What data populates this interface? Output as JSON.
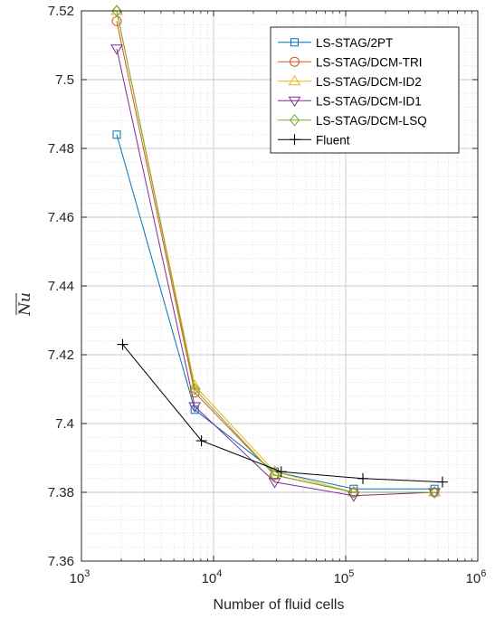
{
  "chart_data": {
    "type": "line",
    "xscale": "log",
    "xlabel": "Number of fluid cells",
    "ylabel": "Nu",
    "xlim": [
      1000,
      1000000
    ],
    "ylim": [
      7.36,
      7.52
    ],
    "xticks": [
      {
        "value": 1000,
        "base": "10",
        "exp": "3"
      },
      {
        "value": 10000,
        "base": "10",
        "exp": "4"
      },
      {
        "value": 100000,
        "base": "10",
        "exp": "5"
      },
      {
        "value": 1000000,
        "base": "10",
        "exp": "6"
      }
    ],
    "yticks": [
      {
        "value": 7.36,
        "label": "7.36"
      },
      {
        "value": 7.38,
        "label": "7.38"
      },
      {
        "value": 7.4,
        "label": "7.4"
      },
      {
        "value": 7.42,
        "label": "7.42"
      },
      {
        "value": 7.44,
        "label": "7.44"
      },
      {
        "value": 7.46,
        "label": "7.46"
      },
      {
        "value": 7.48,
        "label": "7.48"
      },
      {
        "value": 7.5,
        "label": "7.5"
      },
      {
        "value": 7.52,
        "label": "7.52"
      }
    ],
    "grid": true,
    "minor_grid": true,
    "legend_position": "top-right",
    "series": [
      {
        "name": "LS-STAG/2PT",
        "color": "#0072BD",
        "marker": "square",
        "x": [
          1850,
          7200,
          29000,
          115000,
          470000
        ],
        "y": [
          7.484,
          7.404,
          7.386,
          7.381,
          7.381
        ]
      },
      {
        "name": "LS-STAG/DCM-TRI",
        "color": "#D95319",
        "marker": "circle",
        "x": [
          1850,
          7200,
          29000,
          115000,
          470000
        ],
        "y": [
          7.517,
          7.409,
          7.385,
          7.38,
          7.38
        ]
      },
      {
        "name": "LS-STAG/DCM-ID2",
        "color": "#EDB120",
        "marker": "triangle-up",
        "x": [
          1850,
          7200,
          29000,
          115000,
          470000
        ],
        "y": [
          7.52,
          7.411,
          7.386,
          7.38,
          7.38
        ]
      },
      {
        "name": "LS-STAG/DCM-ID1",
        "color": "#7E2F8E",
        "marker": "triangle-down",
        "x": [
          1850,
          7200,
          29000,
          115000,
          470000
        ],
        "y": [
          7.509,
          7.405,
          7.383,
          7.379,
          7.38
        ]
      },
      {
        "name": "LS-STAG/DCM-LSQ",
        "color": "#77AC30",
        "marker": "diamond",
        "x": [
          1850,
          7200,
          29000,
          115000,
          470000
        ],
        "y": [
          7.52,
          7.41,
          7.385,
          7.38,
          7.38
        ]
      },
      {
        "name": "Fluent",
        "color": "#000000",
        "marker": "plus",
        "x": [
          2050,
          8100,
          32500,
          135000,
          540000
        ],
        "y": [
          7.423,
          7.395,
          7.386,
          7.384,
          7.383
        ]
      }
    ]
  }
}
